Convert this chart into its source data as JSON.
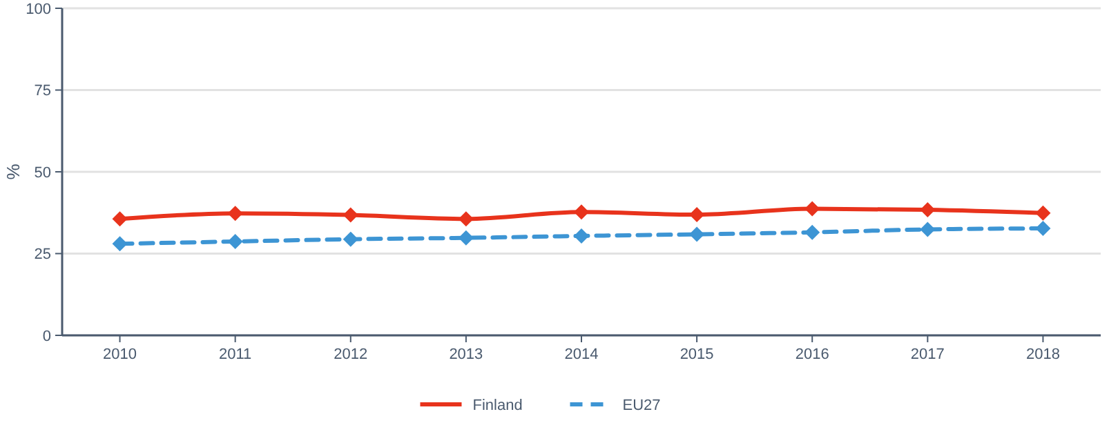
{
  "chart_data": {
    "type": "line",
    "ylabel": "%",
    "categories": [
      "2010",
      "2011",
      "2012",
      "2013",
      "2014",
      "2015",
      "2016",
      "2017",
      "2018"
    ],
    "ylim": [
      0,
      100
    ],
    "yticks": [
      0,
      25,
      50,
      75,
      100
    ],
    "grid": "y",
    "legend": "bottom",
    "marker": "diamond",
    "series": [
      {
        "name": "Finland",
        "color": "#e8331c",
        "line_style": "solid",
        "values": [
          35.6,
          37.3,
          36.8,
          35.6,
          37.7,
          36.9,
          38.7,
          38.4,
          37.4
        ]
      },
      {
        "name": "EU27",
        "color": "#3d95d4",
        "line_style": "dashed",
        "values": [
          28.0,
          28.7,
          29.4,
          29.8,
          30.4,
          30.9,
          31.5,
          32.4,
          32.7
        ]
      }
    ]
  }
}
